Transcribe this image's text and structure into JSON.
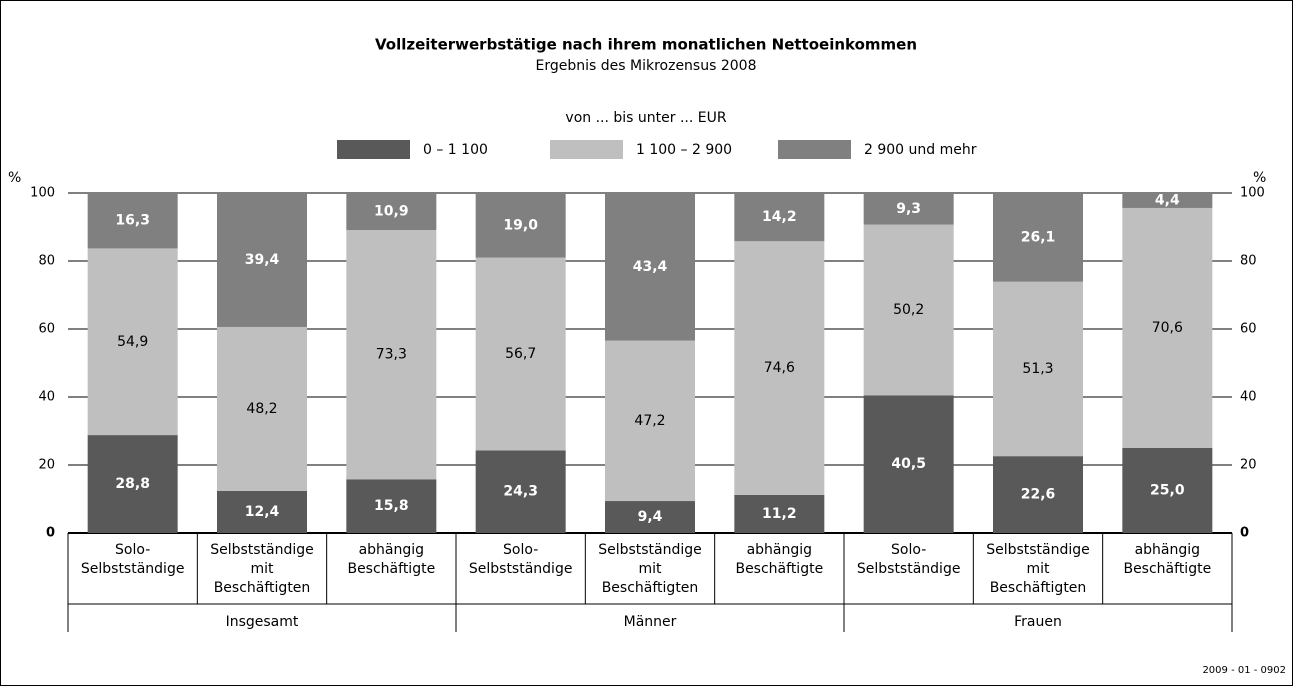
{
  "chart_data": {
    "type": "stacked_bar",
    "title": "Vollzeiterwerbstätige nach ihrem monatlichen Nettoeinkommen",
    "subtitle": "Ergebnis des Mikrozensus 2008",
    "legend_title": "von ... bis unter ... EUR",
    "y_label": "%",
    "y2_label": "%",
    "source": "2009 - 01 - 0902",
    "categories": [
      [
        "Solo-",
        "Selbstständige"
      ],
      [
        "Selbstständige",
        "mit",
        "Beschäftigten"
      ],
      [
        "abhängig",
        "Beschäftigte"
      ],
      [
        "Solo-",
        "Selbstständige"
      ],
      [
        "Selbstständige",
        "mit",
        "Beschäftigten"
      ],
      [
        "abhängig",
        "Beschäftigte"
      ],
      [
        "Solo-",
        "Selbstständige"
      ],
      [
        "Selbstständige",
        "mit",
        "Beschäftigten"
      ],
      [
        "abhängig",
        "Beschäftigte"
      ]
    ],
    "groups": [
      "Insgesamt",
      "Männer",
      "Frauen"
    ],
    "series": [
      {
        "name": "0 – 1 100",
        "color": "#595959",
        "label_color": "#ffffff",
        "values": [
          28.8,
          12.4,
          15.8,
          24.3,
          9.4,
          11.2,
          40.5,
          22.6,
          25.0
        ],
        "value_labels": [
          "28,8",
          "12,4",
          "15,8",
          "24,3",
          "9,4",
          "11,2",
          "40,5",
          "22,6",
          "25,0"
        ]
      },
      {
        "name": "1 100 – 2 900",
        "color": "#bfbfbf",
        "label_color": "#000000",
        "values": [
          54.9,
          48.2,
          73.3,
          56.7,
          47.2,
          74.6,
          50.2,
          51.3,
          70.6
        ],
        "value_labels": [
          "54,9",
          "48,2",
          "73,3",
          "56,7",
          "47,2",
          "74,6",
          "50,2",
          "51,3",
          "70,6"
        ]
      },
      {
        "name": "2 900 und mehr",
        "color": "#808080",
        "label_color": "#ffffff",
        "values": [
          16.3,
          39.4,
          10.9,
          19.0,
          43.4,
          14.2,
          9.3,
          26.1,
          4.4
        ],
        "value_labels": [
          "16,3",
          "39,4",
          "10,9",
          "19,0",
          "43,4",
          "14,2",
          "9,3",
          "26,1",
          "4,4"
        ]
      }
    ],
    "ylim": [
      0,
      100
    ],
    "yticks": [
      0,
      20,
      40,
      60,
      80,
      100
    ],
    "y2lim": [
      0,
      100
    ],
    "y2ticks": [
      0,
      20,
      40,
      60,
      80,
      100
    ],
    "grid": true
  }
}
